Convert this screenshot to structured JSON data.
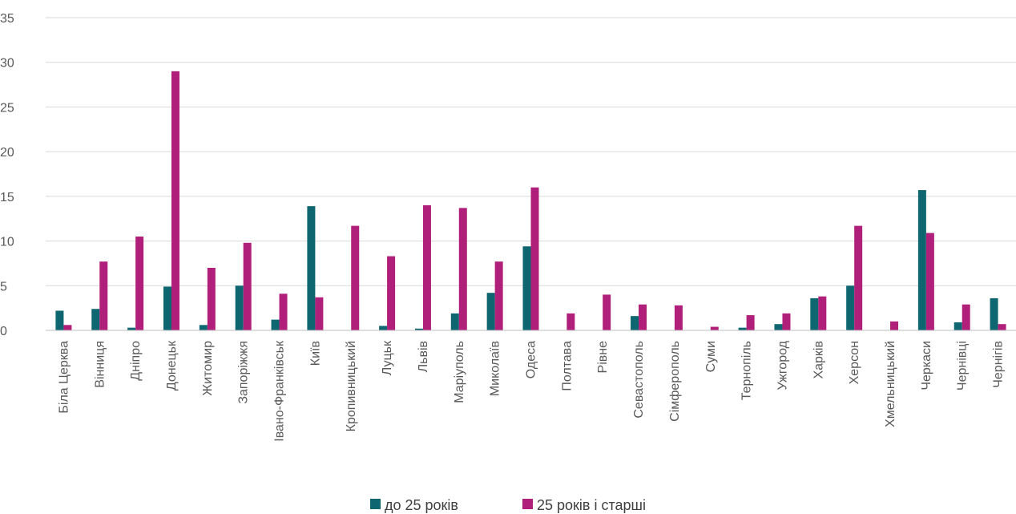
{
  "chart_data": {
    "type": "bar",
    "title": "",
    "xlabel": "",
    "ylabel": "",
    "ylim": [
      0,
      35
    ],
    "yticks": [
      0,
      5,
      10,
      15,
      20,
      25,
      30,
      35
    ],
    "grid": true,
    "legend_position": "bottom",
    "categories": [
      "Біла Церква",
      "Вінниця",
      "Дніпро",
      "Донецьк",
      "Житомир",
      "Запоріжжя",
      "Івано-Франківськ",
      "Київ",
      "Кропивницький",
      "Луцьк",
      "Львів",
      "Маріуполь",
      "Миколаїв",
      "Одеса",
      "Полтава",
      "Рівне",
      "Севастополь",
      "Сімферополь",
      "Суми",
      "Тернопіль",
      "Ужгород",
      "Харків",
      "Херсон",
      "Хмельницький",
      "Черкаси",
      "Чернівці",
      "Чернігів"
    ],
    "series": [
      {
        "name": "до 25 років",
        "color": "#0e6670",
        "values": [
          2.2,
          2.4,
          0.3,
          4.9,
          0.6,
          5.0,
          1.2,
          13.9,
          0.0,
          0.5,
          0.2,
          1.9,
          4.2,
          9.4,
          0.0,
          0.0,
          1.6,
          0.0,
          0.0,
          0.3,
          0.7,
          3.6,
          5.0,
          0.0,
          15.7,
          0.9,
          3.6
        ]
      },
      {
        "name": "25 років і старші",
        "color": "#b01f7a",
        "values": [
          0.6,
          7.7,
          10.5,
          29.0,
          7.0,
          9.8,
          4.1,
          3.7,
          11.7,
          8.3,
          14.0,
          13.7,
          7.7,
          16.0,
          1.9,
          4.0,
          2.9,
          2.8,
          0.4,
          1.7,
          1.9,
          3.8,
          11.7,
          1.0,
          10.9,
          2.9,
          0.7
        ]
      }
    ]
  }
}
